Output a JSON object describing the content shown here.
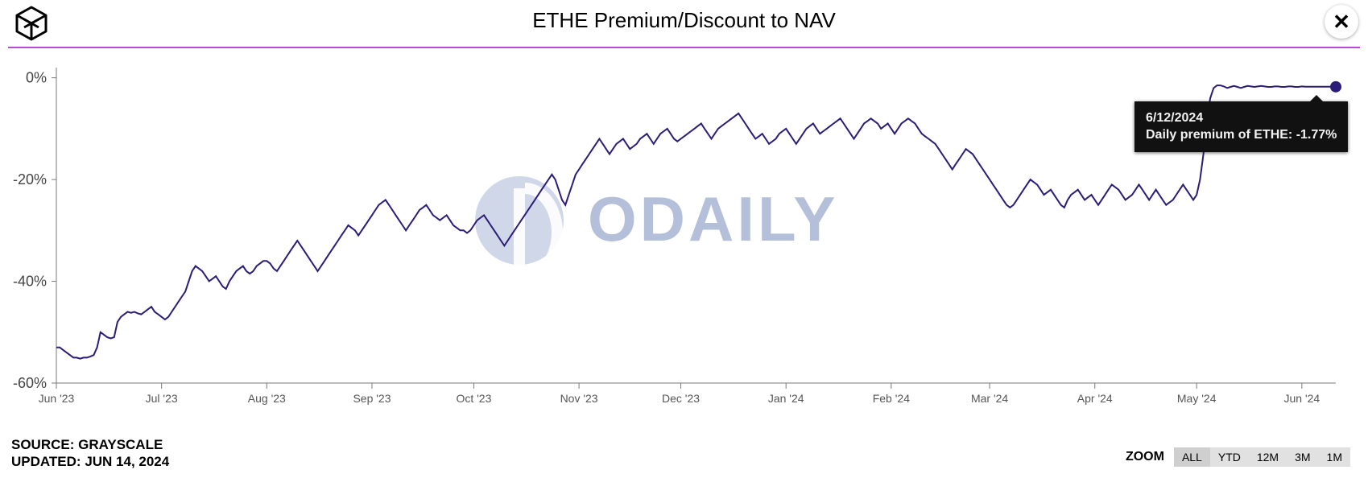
{
  "header": {
    "title": "ETHE Premium/Discount to NAV"
  },
  "close_icon": "✕",
  "divider_color": "#b84bd6",
  "watermark_text": "ODAILY",
  "watermark_color": "#9fb0d2",
  "chart": {
    "type": "line",
    "background_color": "#ffffff",
    "line_color": "#2b1c78",
    "line_width": 2,
    "marker_color": "#2b1c78",
    "marker_radius": 7,
    "marker_x_index": 377,
    "y_axis": {
      "min": -60,
      "max": 2,
      "ticks": [
        0,
        -20,
        -40,
        -60
      ],
      "tick_labels": [
        "0%",
        "-20%",
        "-40%",
        "-60%"
      ],
      "tick_color": "#7a7a7a",
      "axis_color": "#7a7a7a"
    },
    "x_axis": {
      "tick_indices": [
        0,
        31,
        62,
        93,
        123,
        154,
        184,
        215,
        246,
        275,
        306,
        336,
        367
      ],
      "tick_labels": [
        "Jun '23",
        "Jul '23",
        "Aug '23",
        "Sep '23",
        "Oct '23",
        "Nov '23",
        "Dec '23",
        "Jan '24",
        "Feb '24",
        "Mar '24",
        "Apr '24",
        "May '24",
        "Jun '24"
      ],
      "axis_color": "#7a7a7a"
    },
    "data": {
      "n_points": 378,
      "values": [
        -53,
        -53,
        -53.5,
        -54,
        -54.5,
        -55,
        -55,
        -55.2,
        -55,
        -55,
        -54.8,
        -54.5,
        -53,
        -50,
        -50.5,
        -51,
        -51.2,
        -51,
        -48,
        -47,
        -46.5,
        -46,
        -46.2,
        -46,
        -46.3,
        -46.5,
        -46,
        -45.5,
        -45,
        -46,
        -46.5,
        -47,
        -47.5,
        -47,
        -46,
        -45,
        -44,
        -43,
        -42,
        -40,
        -38,
        -37,
        -37.5,
        -38,
        -39,
        -40,
        -39.5,
        -39,
        -40,
        -41,
        -41.5,
        -40,
        -39,
        -38,
        -37.5,
        -37,
        -38,
        -38.5,
        -38,
        -37,
        -36.5,
        -36,
        -36,
        -36.5,
        -37.5,
        -38,
        -37,
        -36,
        -35,
        -34,
        -33,
        -32,
        -33,
        -34,
        -35,
        -36,
        -37,
        -38,
        -37,
        -36,
        -35,
        -34,
        -33,
        -32,
        -31,
        -30,
        -29,
        -29.5,
        -30,
        -31,
        -30,
        -29,
        -28,
        -27,
        -26,
        -25,
        -24.5,
        -24,
        -25,
        -26,
        -27,
        -28,
        -29,
        -30,
        -29,
        -28,
        -27,
        -26,
        -25.5,
        -25,
        -26,
        -27,
        -27.5,
        -28,
        -27.5,
        -27,
        -28,
        -29,
        -29.5,
        -30,
        -30,
        -30.5,
        -30,
        -29,
        -28,
        -27.5,
        -27,
        -28,
        -29,
        -30,
        -31,
        -32,
        -33,
        -32,
        -31,
        -30,
        -29,
        -28,
        -27,
        -26,
        -25,
        -24,
        -23,
        -22,
        -21,
        -20,
        -19,
        -20,
        -22,
        -24,
        -25,
        -23,
        -21,
        -19,
        -18,
        -17,
        -16,
        -15,
        -14,
        -13,
        -12,
        -13,
        -14,
        -15,
        -14,
        -13,
        -12.5,
        -12,
        -13,
        -14,
        -13.5,
        -13,
        -12,
        -11.5,
        -11,
        -12,
        -13,
        -12,
        -11,
        -10.5,
        -10,
        -11,
        -12,
        -12.5,
        -12,
        -11.5,
        -11,
        -10.5,
        -10,
        -9.5,
        -9,
        -10,
        -11,
        -12,
        -11,
        -10,
        -9.5,
        -9,
        -8.5,
        -8,
        -7.5,
        -7,
        -8,
        -9,
        -10,
        -11,
        -12,
        -11.5,
        -11,
        -12,
        -13,
        -12.5,
        -12,
        -11,
        -10.5,
        -10,
        -11,
        -12,
        -13,
        -12,
        -11,
        -10,
        -9.5,
        -9,
        -10,
        -11,
        -10.5,
        -10,
        -9.5,
        -9,
        -8.5,
        -8,
        -9,
        -10,
        -11,
        -12,
        -11,
        -10,
        -9,
        -8.5,
        -8,
        -8.5,
        -9,
        -10,
        -9.5,
        -9,
        -10,
        -11,
        -10,
        -9,
        -8.5,
        -8,
        -8.5,
        -9,
        -10,
        -11,
        -11.5,
        -12,
        -12.5,
        -13,
        -14,
        -15,
        -16,
        -17,
        -18,
        -17,
        -16,
        -15,
        -14,
        -14.5,
        -15,
        -16,
        -17,
        -18,
        -19,
        -20,
        -21,
        -22,
        -23,
        -24,
        -25,
        -25.5,
        -25,
        -24,
        -23,
        -22,
        -21,
        -20,
        -20.5,
        -21,
        -22,
        -23,
        -22.5,
        -22,
        -23,
        -24,
        -25,
        -25.5,
        -24,
        -23,
        -22.5,
        -22,
        -23,
        -24,
        -23.5,
        -23,
        -24,
        -25,
        -24,
        -23,
        -22,
        -21,
        -21.5,
        -22,
        -23,
        -24,
        -23.5,
        -23,
        -22,
        -21,
        -22,
        -23,
        -24,
        -23,
        -22,
        -23,
        -24,
        -25,
        -24.5,
        -24,
        -23,
        -22,
        -21,
        -22,
        -23,
        -24,
        -23,
        -20,
        -15,
        -8,
        -4,
        -2,
        -1.5,
        -1.5,
        -1.7,
        -2,
        -1.8,
        -1.6,
        -1.8,
        -2,
        -1.8,
        -1.6,
        -1.7,
        -1.8,
        -1.7,
        -1.6,
        -1.7,
        -1.8,
        -1.8,
        -1.7,
        -1.7,
        -1.8,
        -1.8,
        -1.7,
        -1.7,
        -1.8,
        -1.8,
        -1.7,
        -1.77,
        -1.77,
        -1.77,
        -1.77,
        -1.77,
        -1.77,
        -1.77,
        -1.77,
        -1.77,
        -1.77
      ]
    }
  },
  "tooltip": {
    "date": "6/12/2024",
    "label": "Daily premium of ETHE:",
    "value": "-1.77%",
    "bg": "#111111",
    "fg": "#f2f2f2"
  },
  "footer": {
    "source_label": "SOURCE:",
    "source_value": "GRAYSCALE",
    "updated_label": "UPDATED:",
    "updated_value": "JUN 14, 2024"
  },
  "zoom": {
    "label": "ZOOM",
    "options": [
      "ALL",
      "YTD",
      "12M",
      "3M",
      "1M"
    ],
    "active": "ALL"
  }
}
